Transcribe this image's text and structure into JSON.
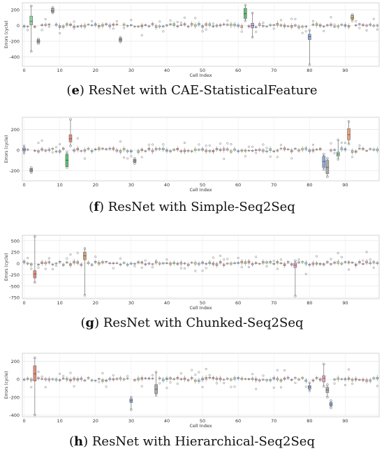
{
  "chart_data": [
    {
      "type": "box",
      "caption_letter": "e",
      "caption_text": "ResNet with CAE-StatisticalFeature",
      "xlabel": "Cell Index",
      "ylabel": "Errors (cycle)",
      "x_ticks": [
        0,
        10,
        20,
        30,
        40,
        50,
        60,
        70,
        80,
        90
      ],
      "y_ticks": [
        200,
        0,
        -200,
        -400
      ],
      "xlim": [
        -0.5,
        99.5
      ],
      "ylim": [
        -520,
        290
      ],
      "grid": true,
      "box_count": 100,
      "highlight_boxes": [
        {
          "cell": 2,
          "q1": 10,
          "q3": 120,
          "median": 55,
          "low": -330,
          "high": 250,
          "color": "#8fd19e"
        },
        {
          "cell": 4,
          "q1": -220,
          "q3": -180,
          "median": -200,
          "low": -230,
          "high": -170,
          "color": "#aaaaaa"
        },
        {
          "cell": 8,
          "q1": 170,
          "q3": 220,
          "median": 190,
          "low": 160,
          "high": 230,
          "color": "#aaaaaa"
        },
        {
          "cell": 27,
          "q1": -200,
          "q3": -160,
          "median": -180,
          "low": -210,
          "high": -150,
          "color": "#aaaaaa"
        },
        {
          "cell": 62,
          "q1": 90,
          "q3": 220,
          "median": 150,
          "low": 60,
          "high": 260,
          "color": "#5cc06f"
        },
        {
          "cell": 64,
          "q1": -30,
          "q3": 30,
          "median": 0,
          "low": -150,
          "high": 160,
          "color": "#b8a9e0"
        },
        {
          "cell": 80,
          "q1": -180,
          "q3": -110,
          "median": -140,
          "low": -500,
          "high": -60,
          "color": "#8eaadf"
        },
        {
          "cell": 92,
          "q1": 80,
          "q3": 130,
          "median": 100,
          "low": 60,
          "high": 140,
          "color": "#d6b46a"
        }
      ]
    },
    {
      "type": "box",
      "caption_letter": "f",
      "caption_text": "ResNet with Simple-Seq2Seq",
      "xlabel": "Cell Index",
      "ylabel": "Errors (cycle)",
      "x_ticks": [
        0,
        10,
        20,
        30,
        40,
        50,
        60,
        70,
        80,
        90
      ],
      "y_ticks": [
        200,
        0,
        -200
      ],
      "xlim": [
        -0.5,
        99.5
      ],
      "ylim": [
        -300,
        320
      ],
      "grid": true,
      "box_count": 100,
      "highlight_boxes": [
        {
          "cell": 0,
          "q1": -10,
          "q3": 20,
          "median": 5,
          "low": -30,
          "high": 40,
          "color": "#8eaadf"
        },
        {
          "cell": 2,
          "q1": -210,
          "q3": -180,
          "median": -195,
          "low": -220,
          "high": -170,
          "color": "#aaaaaa"
        },
        {
          "cell": 12,
          "q1": -160,
          "q3": -40,
          "median": -100,
          "low": -170,
          "high": -20,
          "color": "#5cc06f"
        },
        {
          "cell": 13,
          "q1": 80,
          "q3": 150,
          "median": 110,
          "low": 40,
          "high": 300,
          "color": "#e58b7a"
        },
        {
          "cell": 31,
          "q1": -120,
          "q3": -90,
          "median": -105,
          "low": -130,
          "high": -80,
          "color": "#aaaaaa"
        },
        {
          "cell": 84,
          "q1": -170,
          "q3": -60,
          "median": -110,
          "low": -190,
          "high": -40,
          "color": "#8eaadf"
        },
        {
          "cell": 85,
          "q1": -230,
          "q3": -100,
          "median": -170,
          "low": -260,
          "high": -80,
          "color": "#aaaaaa"
        },
        {
          "cell": 88,
          "q1": -60,
          "q3": -20,
          "median": -40,
          "low": -90,
          "high": 100,
          "color": "#8fd19e"
        },
        {
          "cell": 91,
          "q1": 100,
          "q3": 210,
          "median": 150,
          "low": 60,
          "high": 280,
          "color": "#e8a07a"
        }
      ]
    },
    {
      "type": "box",
      "caption_letter": "g",
      "caption_text": "ResNet with Chunked-Seq2Seq",
      "xlabel": "Cell Index",
      "ylabel": "Errors (cycle)",
      "x_ticks": [
        0,
        10,
        20,
        30,
        40,
        50,
        60,
        70,
        80,
        90
      ],
      "y_ticks": [
        500,
        250,
        0,
        -250,
        -500,
        -750
      ],
      "xlim": [
        -0.5,
        99.5
      ],
      "ylim": [
        -780,
        620
      ],
      "grid": true,
      "box_count": 100,
      "highlight_boxes": [
        {
          "cell": 3,
          "q1": -320,
          "q3": -160,
          "median": -230,
          "low": -420,
          "high": 600,
          "color": "#e58b7a"
        },
        {
          "cell": 17,
          "q1": 80,
          "q3": 250,
          "median": 170,
          "low": -700,
          "high": 330,
          "color": "#cfa07a"
        },
        {
          "cell": 76,
          "q1": -90,
          "q3": 10,
          "median": -40,
          "low": -720,
          "high": 60,
          "color": "#e8a0c8"
        }
      ]
    },
    {
      "type": "box",
      "caption_letter": "h",
      "caption_text": "ResNet with Hierarchical-Seq2Seq",
      "xlabel": "Cell Index",
      "ylabel": "Errors (cycle)",
      "x_ticks": [
        0,
        10,
        20,
        30,
        40,
        50,
        60,
        70,
        80,
        90
      ],
      "y_ticks": [
        200,
        0,
        -200,
        -400
      ],
      "xlim": [
        -0.5,
        99.5
      ],
      "ylim": [
        -420,
        290
      ],
      "grid": true,
      "box_count": 100,
      "highlight_boxes": [
        {
          "cell": 3,
          "q1": -20,
          "q3": 150,
          "median": 60,
          "low": -400,
          "high": 240,
          "color": "#e58b7a"
        },
        {
          "cell": 30,
          "q1": -260,
          "q3": -220,
          "median": -240,
          "low": -340,
          "high": -200,
          "color": "#8eaadf"
        },
        {
          "cell": 37,
          "q1": -160,
          "q3": -60,
          "median": -110,
          "low": -180,
          "high": 80,
          "color": "#aaaaaa"
        },
        {
          "cell": 80,
          "q1": -110,
          "q3": -70,
          "median": -90,
          "low": -130,
          "high": -40,
          "color": "#8eaadf"
        },
        {
          "cell": 84,
          "q1": -30,
          "q3": 40,
          "median": 10,
          "low": -80,
          "high": 170,
          "color": "#e8a0c8"
        },
        {
          "cell": 85,
          "q1": -150,
          "q3": -90,
          "median": -120,
          "low": -200,
          "high": -60,
          "color": "#aaaaaa"
        },
        {
          "cell": 86,
          "q1": -300,
          "q3": -260,
          "median": -280,
          "low": -320,
          "high": -240,
          "color": "#8eaadf"
        }
      ]
    }
  ]
}
